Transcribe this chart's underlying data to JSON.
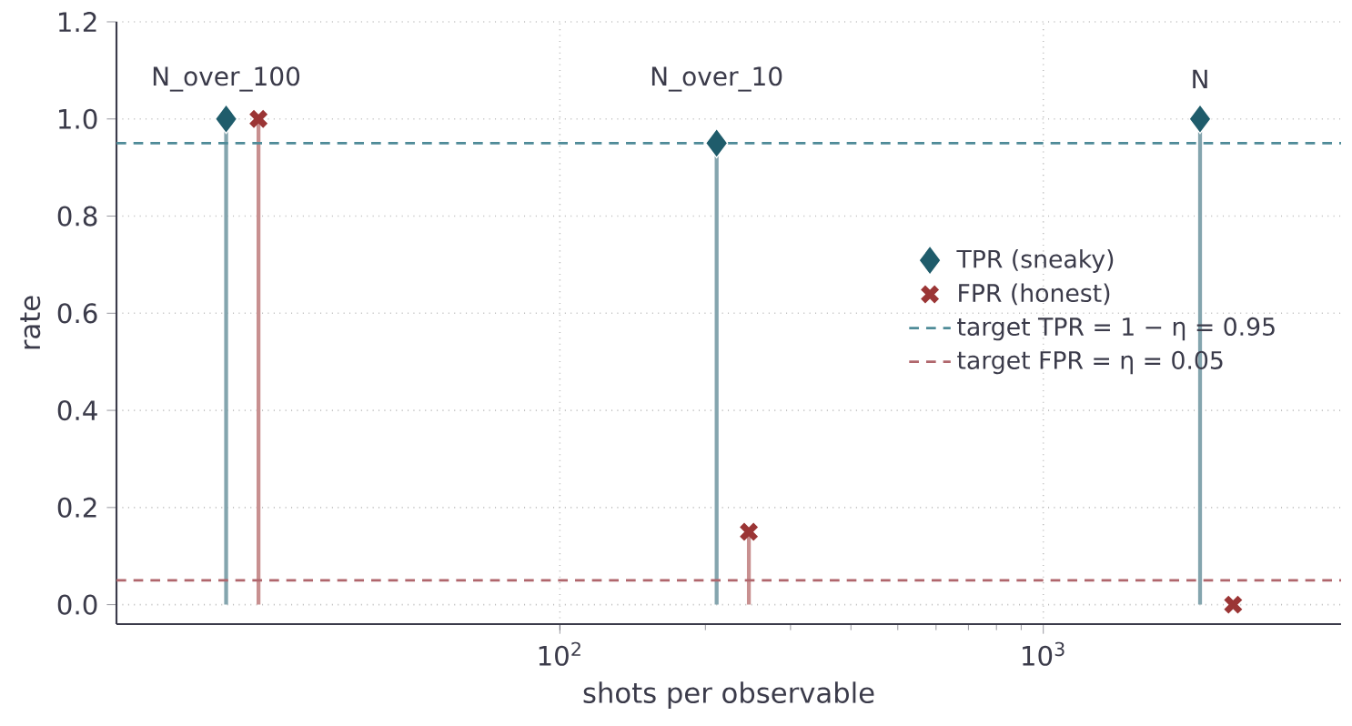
{
  "chart_data": {
    "type": "lollipop",
    "xlabel": "shots per observable",
    "ylabel": "rate",
    "xlim": [
      12.1,
      4130
    ],
    "ylim": [
      -0.04,
      1.2
    ],
    "log": "x",
    "grid": true,
    "legend": "right",
    "xticks": [
      {
        "value": 100,
        "label": "10$^{2}$"
      },
      {
        "value": 1000,
        "label": "10$^{3}$"
      }
    ],
    "yticks": [
      {
        "value": 0,
        "label": "0.0"
      },
      {
        "value": 0.2,
        "label": "0.2"
      },
      {
        "value": 0.4,
        "label": "0.4"
      },
      {
        "value": 0.6,
        "label": "0.6"
      },
      {
        "value": 0.8,
        "label": "0.8"
      },
      {
        "value": 1.0,
        "label": "1.0"
      },
      {
        "value": 1.2,
        "label": "1.2"
      }
    ],
    "series": [
      {
        "name": "TPR (sneaky)",
        "color": "#1f5c6b",
        "marker": "diamond",
        "x": [
          20.4,
          211,
          2110
        ],
        "values": [
          1.0,
          0.95,
          1.0
        ]
      },
      {
        "name": "FPR (honest)",
        "color": "#9b3535",
        "marker": "cross",
        "x": [
          23.8,
          246,
          2470
        ],
        "values": [
          1.0,
          0.15,
          0.0
        ]
      }
    ],
    "ref_lines": [
      {
        "axis": "y",
        "value": 0.95,
        "label": "target TPR = 1 − η = 0.95",
        "color": "#4f8b98",
        "line_style": "dashed"
      },
      {
        "axis": "y",
        "value": 0.05,
        "label": "target FPR = η = 0.05",
        "color": "#b0666c",
        "line_style": "dashed"
      }
    ],
    "annotations": [
      "N_over_100",
      "N_over_10",
      "N"
    ]
  }
}
